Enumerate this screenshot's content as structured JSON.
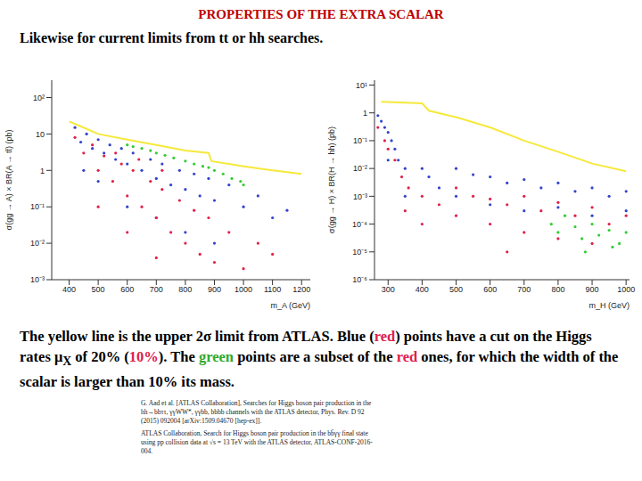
{
  "title": "PROPERTIES OF THE EXTRA SCALAR",
  "subtitle": "Likewise for current limits from tt or hh searches.",
  "caption": [
    {
      "text": "The yellow line is the upper 2σ limit from ATLAS. Blue ("
    },
    {
      "text": "red",
      "color": "#e0204a"
    },
    {
      "text": ") points have a cut on the Higgs rates μ"
    },
    {
      "text": "X",
      "sub": true
    },
    {
      "text": " of 20% ("
    },
    {
      "text": "10%",
      "color": "#e0204a"
    },
    {
      "text": "). The "
    },
    {
      "text": "green",
      "color": "#2ea82e"
    },
    {
      "text": " points are a subset of the "
    },
    {
      "text": "red",
      "color": "#e0204a"
    },
    {
      "text": " ones, for which the width of the scalar is larger than 10% its mass."
    }
  ],
  "references": [
    "G. Aad et al. [ATLAS Collaboration], Searches for Higgs boson pair production in the hh→bbττ, γγWW*, γγbb, bbbb channels with the ATLAS detector, Phys. Rev. D 92 (2015) 092004 [arXiv:1509.04670 [hep-ex]].",
    "ATLAS Collaboration, Search for Higgs boson pair production in the bb̄γγ final state using pp collision data at √s = 13 TeV with the ATLAS detector, ATLAS-CONF-2016-004."
  ],
  "chart_data": [
    {
      "type": "scatter",
      "x_label": "m_A (GeV)",
      "y_label": "σ(gg → A) × BR(A → tt̄) (pb)",
      "log": "y",
      "xlim": [
        340,
        1230
      ],
      "xticks": [
        400,
        500,
        600,
        700,
        800,
        900,
        1000,
        1100,
        1200
      ],
      "ylim": [
        0.001,
        300
      ],
      "yticks": [
        {
          "value": 0.001,
          "label": "10⁻³"
        },
        {
          "value": 0.01,
          "label": "10⁻²"
        },
        {
          "value": 0.1,
          "label": "10⁻¹"
        },
        1,
        10,
        {
          "value": 100,
          "label": "10²"
        }
      ],
      "series": [
        {
          "type": "scatter",
          "color": "#3344cc",
          "x": [
            420,
            440,
            460,
            480,
            500,
            520,
            540,
            560,
            580,
            600,
            620,
            650,
            680,
            700,
            720,
            750,
            780,
            800,
            830,
            850,
            880,
            900,
            950,
            1000,
            1050,
            1100,
            1150,
            500,
            600,
            700,
            800,
            450,
            900
          ],
          "values": [
            15,
            6,
            10,
            4,
            7,
            3,
            5,
            2,
            4,
            1.5,
            3,
            1,
            2,
            0.6,
            1.5,
            0.4,
            1,
            0.3,
            0.8,
            0.2,
            0.6,
            0.15,
            0.4,
            0.1,
            0.2,
            0.05,
            0.08,
            0.5,
            0.1,
            0.05,
            0.02,
            1,
            0.01
          ]
        },
        {
          "type": "scatter",
          "color": "#e0204a",
          "x": [
            420,
            450,
            480,
            500,
            520,
            550,
            580,
            600,
            620,
            650,
            680,
            700,
            720,
            750,
            780,
            800,
            830,
            850,
            880,
            900,
            950,
            1000,
            1050,
            1100,
            500,
            600,
            700,
            560,
            640,
            720
          ],
          "values": [
            8,
            3,
            5,
            1,
            2.5,
            0.5,
            1.5,
            0.2,
            1,
            0.1,
            0.5,
            0.05,
            0.3,
            0.02,
            0.15,
            0.01,
            0.08,
            0.005,
            0.05,
            0.003,
            0.02,
            0.002,
            0.01,
            0.005,
            0.1,
            0.02,
            0.004,
            3,
            2,
            1
          ]
        },
        {
          "type": "scatter",
          "color": "#33cc33",
          "x": [
            600,
            620,
            650,
            680,
            700,
            730,
            760,
            800,
            830,
            860,
            880,
            900,
            930,
            960,
            990,
            1000
          ],
          "values": [
            5,
            4.5,
            4,
            3.5,
            3,
            2.6,
            2.2,
            1.8,
            1.5,
            1.3,
            1.2,
            1,
            0.8,
            0.6,
            0.5,
            0.4
          ]
        },
        {
          "type": "line",
          "color": "#f5e93a",
          "x": [
            400,
            450,
            500,
            600,
            700,
            800,
            880,
            890,
            1000,
            1100,
            1200
          ],
          "values": [
            22,
            15,
            10,
            7,
            5,
            3.5,
            3,
            1.8,
            1.3,
            1,
            0.8
          ]
        }
      ]
    },
    {
      "type": "scatter",
      "x_label": "m_H (GeV)",
      "y_label": "σ(gg → H) × BR(H → hh) (pb)",
      "log": "y",
      "xlim": [
        260,
        1010
      ],
      "xticks": [
        300,
        400,
        500,
        600,
        700,
        800,
        900,
        1000
      ],
      "ylim": [
        1e-06,
        15
      ],
      "yticks": [
        {
          "value": 1e-06,
          "label": "10⁻⁶"
        },
        {
          "value": 1e-05,
          "label": "10⁻⁵"
        },
        {
          "value": 0.0001,
          "label": "10⁻⁴"
        },
        {
          "value": 0.001,
          "label": "10⁻³"
        },
        {
          "value": 0.01,
          "label": "10⁻²"
        },
        {
          "value": 0.1,
          "label": "10⁻¹"
        },
        1,
        {
          "value": 10,
          "label": "10¹"
        }
      ],
      "series": [
        {
          "type": "scatter",
          "color": "#3344cc",
          "x": [
            270,
            280,
            290,
            300,
            310,
            320,
            330,
            350,
            300,
            400,
            420,
            450,
            500,
            550,
            600,
            650,
            700,
            750,
            800,
            850,
            900,
            950,
            1000,
            600,
            700,
            800,
            900,
            500,
            350,
            1000
          ],
          "values": [
            0.8,
            0.5,
            0.3,
            0.2,
            0.1,
            0.05,
            0.02,
            0.01,
            0.02,
            0.01,
            0.005,
            0.002,
            0.01,
            0.006,
            0.005,
            0.003,
            0.004,
            0.002,
            0.003,
            0.0015,
            0.002,
            0.001,
            0.0015,
            0.0005,
            0.0003,
            0.0004,
            0.0002,
            0.001,
            0.001,
            0.0003
          ]
        },
        {
          "type": "scatter",
          "color": "#e0204a",
          "x": [
            270,
            290,
            300,
            320,
            340,
            360,
            400,
            450,
            500,
            550,
            600,
            650,
            700,
            750,
            800,
            850,
            900,
            950,
            1000,
            600,
            700,
            800,
            500,
            400,
            900,
            650,
            350
          ],
          "values": [
            0.3,
            0.1,
            0.05,
            0.02,
            0.005,
            0.002,
            0.001,
            0.0005,
            0.002,
            0.001,
            0.0008,
            0.0005,
            0.001,
            0.0003,
            0.0006,
            0.0002,
            0.0004,
            0.0001,
            0.0002,
            0.0001,
            5e-05,
            3e-05,
            0.0002,
            0.0001,
            2e-05,
            1e-05,
            0.0003
          ]
        },
        {
          "type": "scatter",
          "color": "#33cc33",
          "x": [
            780,
            800,
            820,
            850,
            870,
            900,
            920,
            950,
            980,
            1000,
            880,
            960
          ],
          "values": [
            0.0001,
            5e-05,
            0.0002,
            8e-05,
            3e-05,
            0.0001,
            4e-05,
            6e-05,
            2e-05,
            5e-05,
            1e-05,
            1.5e-05
          ]
        },
        {
          "type": "line",
          "color": "#f5e93a",
          "x": [
            280,
            400,
            420,
            500,
            600,
            700,
            800,
            900,
            1000
          ],
          "values": [
            2.5,
            2.2,
            1.2,
            0.7,
            0.3,
            0.1,
            0.04,
            0.015,
            0.008
          ]
        }
      ]
    }
  ]
}
